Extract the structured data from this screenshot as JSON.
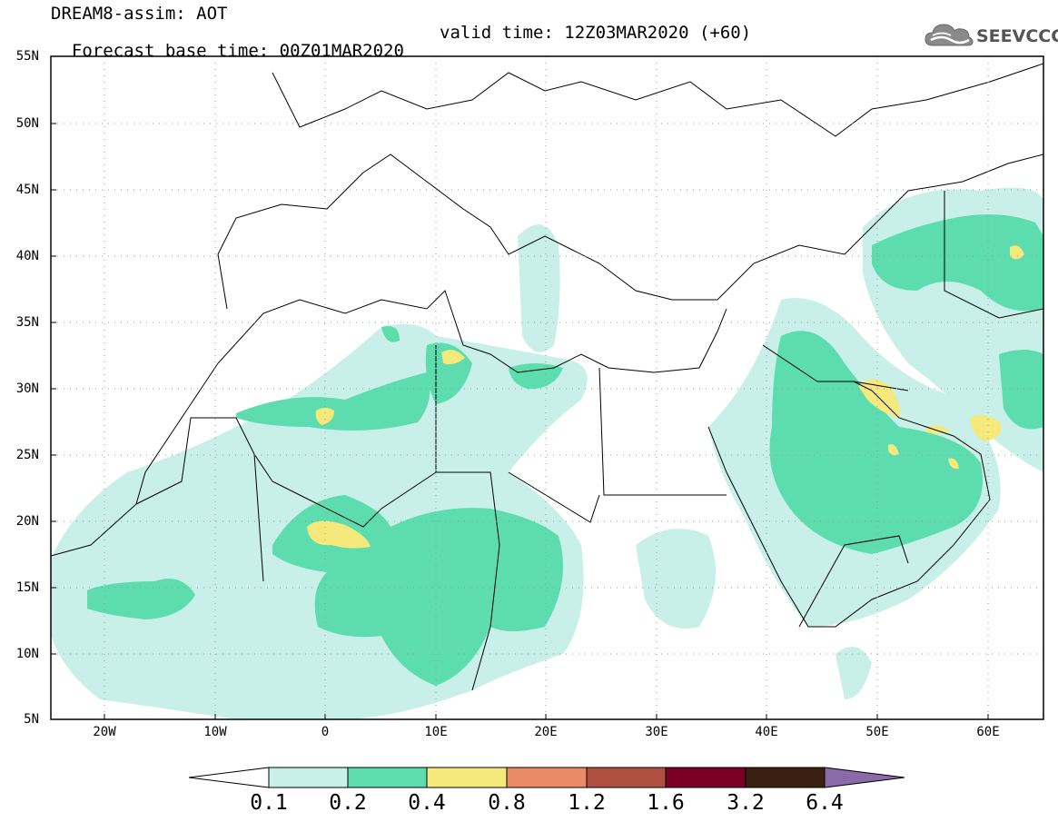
{
  "header": {
    "line1": "DREAM8-assim: AOT",
    "base_time": "Forecast base time: 00Z01MAR2020",
    "valid_time": "valid time: 12Z03MAR2020 (+60)"
  },
  "logo": {
    "text": "SEEVCCC",
    "icon": "cloud-icon"
  },
  "map": {
    "lat_labels": [
      "55N",
      "50N",
      "45N",
      "40N",
      "35N",
      "30N",
      "25N",
      "20N",
      "15N",
      "10N",
      "5N"
    ],
    "lon_labels": [
      "20W",
      "10W",
      "0",
      "10E",
      "20E",
      "30E",
      "40E",
      "50E",
      "60E"
    ],
    "variable": "AOT"
  },
  "colorbar": {
    "ticks": [
      "0.1",
      "0.2",
      "0.4",
      "0.8",
      "1.2",
      "1.6",
      "3.2",
      "6.4"
    ],
    "colors": [
      "#ffffff",
      "#c8f0e8",
      "#5ddcb0",
      "#f4e97a",
      "#e88b66",
      "#b05040",
      "#7a0028",
      "#3a2010",
      "#8a6aa8"
    ]
  },
  "aot_colors": {
    "low": "#c8f0e8",
    "mid": "#5ddcb0",
    "high": "#f4e97a"
  }
}
